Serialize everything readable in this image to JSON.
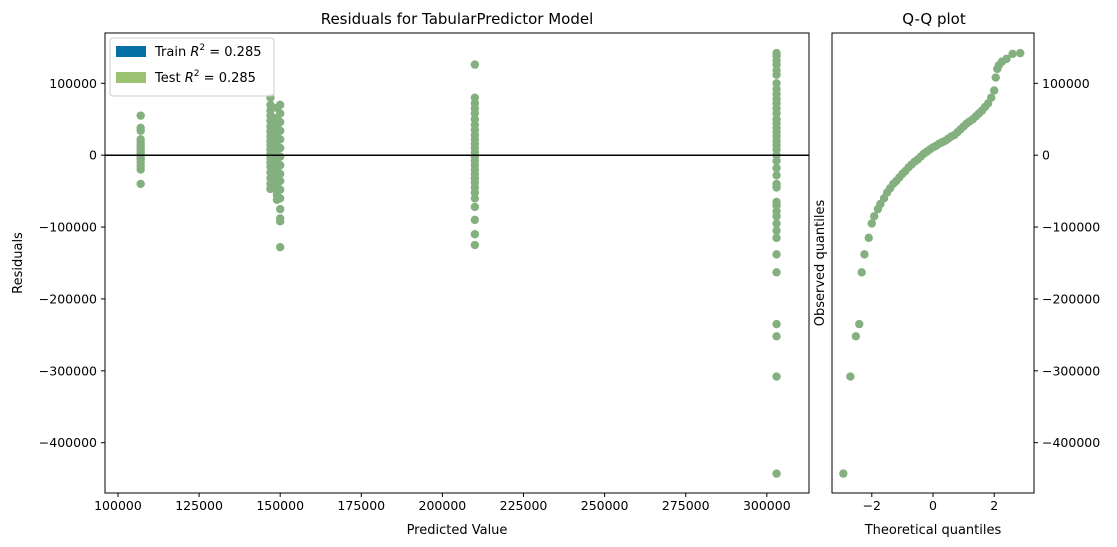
{
  "chart_data": [
    {
      "type": "scatter",
      "title": "Residuals for TabularPredictor Model",
      "xlabel": "Predicted Value",
      "ylabel": "Residuals",
      "xlim": [
        96000,
        313000
      ],
      "ylim": [
        -470000,
        170000
      ],
      "xticks": [
        100000,
        125000,
        150000,
        175000,
        200000,
        225000,
        250000,
        275000,
        300000
      ],
      "xtick_labels": [
        "100000",
        "125000",
        "150000",
        "175000",
        "200000",
        "225000",
        "250000",
        "275000",
        "300000"
      ],
      "yticks": [
        100000,
        0,
        -100000,
        -200000,
        -300000,
        -400000
      ],
      "ytick_labels": [
        "100000",
        "0",
        "−100000",
        "−200000",
        "−300000",
        "−400000"
      ],
      "zero_line": 0,
      "legend": {
        "placement": "top-left",
        "entries": [
          {
            "prefix": "Train ",
            "r2": "0.285",
            "color": "#0570a3"
          },
          {
            "prefix": "Test ",
            "r2": "0.285",
            "color": "#9cc371"
          }
        ]
      },
      "series": [
        {
          "name": "Test",
          "color": "#83b07e",
          "points": [
            [
              107000,
              55000
            ],
            [
              107000,
              38000
            ],
            [
              107000,
              34000
            ],
            [
              107000,
              22000
            ],
            [
              107000,
              18000
            ],
            [
              107000,
              14000
            ],
            [
              107000,
              10000
            ],
            [
              107000,
              6000
            ],
            [
              107000,
              3000
            ],
            [
              107000,
              0
            ],
            [
              107000,
              -3000
            ],
            [
              107000,
              -6000
            ],
            [
              107000,
              -10000
            ],
            [
              107000,
              -15000
            ],
            [
              107000,
              -20000
            ],
            [
              107000,
              -40000
            ],
            [
              147000,
              80000
            ],
            [
              147000,
              70000
            ],
            [
              147000,
              62000
            ],
            [
              147000,
              55000
            ],
            [
              147000,
              48000
            ],
            [
              147000,
              40000
            ],
            [
              147000,
              33000
            ],
            [
              147000,
              26000
            ],
            [
              147000,
              20000
            ],
            [
              147000,
              14000
            ],
            [
              147000,
              8000
            ],
            [
              147000,
              2000
            ],
            [
              147000,
              -4000
            ],
            [
              147000,
              -10000
            ],
            [
              147000,
              -16000
            ],
            [
              147000,
              -24000
            ],
            [
              147000,
              -32000
            ],
            [
              147000,
              -40000
            ],
            [
              147000,
              -47000
            ],
            [
              148000,
              52000
            ],
            [
              148000,
              44000
            ],
            [
              148000,
              36000
            ],
            [
              148000,
              28000
            ],
            [
              148000,
              20000
            ],
            [
              148000,
              12000
            ],
            [
              148000,
              4000
            ],
            [
              148000,
              -6000
            ],
            [
              148000,
              -14000
            ],
            [
              148000,
              -22000
            ],
            [
              148000,
              -30000
            ],
            [
              148000,
              -38000
            ],
            [
              148000,
              -46000
            ],
            [
              149000,
              66000
            ],
            [
              149000,
              50000
            ],
            [
              149000,
              40000
            ],
            [
              149000,
              30000
            ],
            [
              149000,
              20000
            ],
            [
              149000,
              10000
            ],
            [
              149000,
              0
            ],
            [
              149000,
              -10000
            ],
            [
              149000,
              -20000
            ],
            [
              149000,
              -30000
            ],
            [
              149000,
              -40000
            ],
            [
              149000,
              -55000
            ],
            [
              149000,
              -62000
            ],
            [
              150000,
              70000
            ],
            [
              150000,
              58000
            ],
            [
              150000,
              46000
            ],
            [
              150000,
              34000
            ],
            [
              150000,
              22000
            ],
            [
              150000,
              10000
            ],
            [
              150000,
              -2000
            ],
            [
              150000,
              -14000
            ],
            [
              150000,
              -26000
            ],
            [
              150000,
              -36000
            ],
            [
              150000,
              -48000
            ],
            [
              150000,
              -60000
            ],
            [
              150000,
              -75000
            ],
            [
              150000,
              -88000
            ],
            [
              150000,
              -92000
            ],
            [
              150000,
              -128000
            ],
            [
              210000,
              126000
            ],
            [
              210000,
              80000
            ],
            [
              210000,
              72000
            ],
            [
              210000,
              65000
            ],
            [
              210000,
              58000
            ],
            [
              210000,
              50000
            ],
            [
              210000,
              42000
            ],
            [
              210000,
              35000
            ],
            [
              210000,
              28000
            ],
            [
              210000,
              22000
            ],
            [
              210000,
              16000
            ],
            [
              210000,
              10000
            ],
            [
              210000,
              4000
            ],
            [
              210000,
              -2000
            ],
            [
              210000,
              -8000
            ],
            [
              210000,
              -14000
            ],
            [
              210000,
              -20000
            ],
            [
              210000,
              -26000
            ],
            [
              210000,
              -32000
            ],
            [
              210000,
              -38000
            ],
            [
              210000,
              -45000
            ],
            [
              210000,
              -52000
            ],
            [
              210000,
              -60000
            ],
            [
              210000,
              -72000
            ],
            [
              210000,
              -90000
            ],
            [
              210000,
              -110000
            ],
            [
              210000,
              -125000
            ],
            [
              303000,
              142000
            ],
            [
              303000,
              138000
            ],
            [
              303000,
              132000
            ],
            [
              303000,
              126000
            ],
            [
              303000,
              118000
            ],
            [
              303000,
              112000
            ],
            [
              303000,
              100000
            ],
            [
              303000,
              92000
            ],
            [
              303000,
              85000
            ],
            [
              303000,
              78000
            ],
            [
              303000,
              72000
            ],
            [
              303000,
              65000
            ],
            [
              303000,
              58000
            ],
            [
              303000,
              50000
            ],
            [
              303000,
              44000
            ],
            [
              303000,
              38000
            ],
            [
              303000,
              32000
            ],
            [
              303000,
              26000
            ],
            [
              303000,
              20000
            ],
            [
              303000,
              14000
            ],
            [
              303000,
              8000
            ],
            [
              303000,
              0
            ],
            [
              303000,
              -8000
            ],
            [
              303000,
              -18000
            ],
            [
              303000,
              -28000
            ],
            [
              303000,
              -40000
            ],
            [
              303000,
              -45000
            ],
            [
              303000,
              -65000
            ],
            [
              303000,
              -70000
            ],
            [
              303000,
              -78000
            ],
            [
              303000,
              -85000
            ],
            [
              303000,
              -95000
            ],
            [
              303000,
              -105000
            ],
            [
              303000,
              -115000
            ],
            [
              303000,
              -138000
            ],
            [
              303000,
              -163000
            ],
            [
              303000,
              -235000
            ],
            [
              303000,
              -252000
            ],
            [
              303000,
              -308000
            ],
            [
              303000,
              -443000
            ]
          ]
        }
      ]
    },
    {
      "type": "scatter",
      "title": "Q-Q plot",
      "xlabel": "Theoretical quantiles",
      "ylabel": "Observed quantiles",
      "xlim": [
        -3.3,
        3.3
      ],
      "ylim": [
        -470000,
        170000
      ],
      "xticks": [
        -2,
        0,
        2
      ],
      "xtick_labels": [
        "−2",
        "0",
        "2"
      ],
      "yticks": [
        100000,
        0,
        -100000,
        -200000,
        -300000,
        -400000
      ],
      "ytick_labels": [
        "100000",
        "0",
        "−100000",
        "−200000",
        "−300000",
        "−400000"
      ],
      "y_axis_side": "right",
      "series": [
        {
          "name": "",
          "color": "#83b07e",
          "points": [
            [
              -2.93,
              -443000
            ],
            [
              -2.7,
              -308000
            ],
            [
              -2.52,
              -252000
            ],
            [
              -2.41,
              -235000
            ],
            [
              -2.33,
              -163000
            ],
            [
              -2.24,
              -138000
            ],
            [
              -2.1,
              -115000
            ],
            [
              -2.0,
              -95000
            ],
            [
              -1.92,
              -85000
            ],
            [
              -1.8,
              -75000
            ],
            [
              -1.72,
              -68000
            ],
            [
              -1.6,
              -60000
            ],
            [
              -1.5,
              -52000
            ],
            [
              -1.4,
              -46000
            ],
            [
              -1.3,
              -40000
            ],
            [
              -1.2,
              -36000
            ],
            [
              -1.1,
              -31000
            ],
            [
              -1.0,
              -26000
            ],
            [
              -0.9,
              -22000
            ],
            [
              -0.8,
              -17000
            ],
            [
              -0.7,
              -13000
            ],
            [
              -0.6,
              -9000
            ],
            [
              -0.5,
              -6000
            ],
            [
              -0.4,
              -2000
            ],
            [
              -0.3,
              2000
            ],
            [
              -0.2,
              5000
            ],
            [
              -0.1,
              8000
            ],
            [
              0.0,
              11000
            ],
            [
              0.1,
              13000
            ],
            [
              0.2,
              16000
            ],
            [
              0.3,
              18000
            ],
            [
              0.4,
              20000
            ],
            [
              0.5,
              23000
            ],
            [
              0.6,
              26000
            ],
            [
              0.7,
              28000
            ],
            [
              0.8,
              32000
            ],
            [
              0.9,
              36000
            ],
            [
              1.0,
              40000
            ],
            [
              1.1,
              44000
            ],
            [
              1.2,
              47000
            ],
            [
              1.3,
              50000
            ],
            [
              1.4,
              54000
            ],
            [
              1.5,
              58000
            ],
            [
              1.6,
              62000
            ],
            [
              1.7,
              67000
            ],
            [
              1.8,
              72000
            ],
            [
              1.9,
              80000
            ],
            [
              2.0,
              90000
            ],
            [
              2.05,
              108000
            ],
            [
              2.1,
              120000
            ],
            [
              2.15,
              125000
            ],
            [
              2.25,
              130000
            ],
            [
              2.4,
              134000
            ],
            [
              2.6,
              141000
            ],
            [
              2.85,
              142000
            ]
          ]
        }
      ]
    }
  ]
}
